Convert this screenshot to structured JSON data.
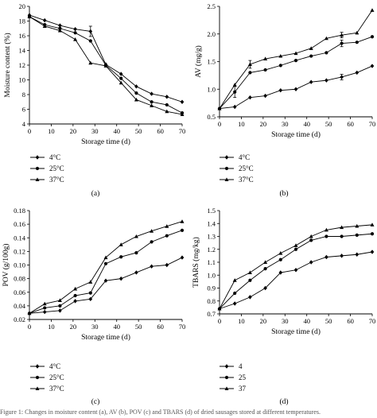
{
  "chart_data": [
    {
      "type": "line",
      "panel_label": "(a)",
      "xlabel": "Storage time (d)",
      "ylabel": "Moisture content (%)",
      "xlim": [
        0,
        70
      ],
      "ylim": [
        4,
        20
      ],
      "xticks": [
        0,
        10,
        20,
        30,
        40,
        50,
        60,
        70
      ],
      "yticks": [
        4,
        6,
        8,
        10,
        12,
        14,
        16,
        18,
        20
      ],
      "x": [
        0,
        7,
        14,
        21,
        28,
        35,
        42,
        49,
        56,
        63,
        70
      ],
      "series": [
        {
          "name": "4°C",
          "marker": "diamond",
          "values": [
            18.8,
            18.1,
            17.4,
            16.9,
            16.6,
            12.1,
            10.8,
            9.1,
            8.1,
            7.7,
            7.0
          ]
        },
        {
          "name": "25°C",
          "marker": "circle",
          "values": [
            18.6,
            17.5,
            17.0,
            16.4,
            15.3,
            12.0,
            10.2,
            8.2,
            7.0,
            6.6,
            5.5
          ]
        },
        {
          "name": "37°C",
          "marker": "triangle",
          "values": [
            18.6,
            17.3,
            16.7,
            15.5,
            12.3,
            11.9,
            9.6,
            7.3,
            6.5,
            5.7,
            5.3
          ]
        }
      ],
      "error_bars": [
        {
          "series": 0,
          "index": 4,
          "err": 0.7
        }
      ],
      "legend_position": "below",
      "grid": false
    },
    {
      "type": "line",
      "panel_label": "(b)",
      "xlabel": "Storage time (d)",
      "ylabel": "AV (mg/g)",
      "xlim": [
        0,
        70
      ],
      "ylim": [
        0.5,
        2.5
      ],
      "xticks": [
        0,
        10,
        20,
        30,
        40,
        50,
        60,
        70
      ],
      "yticks": [
        0.5,
        1.0,
        1.5,
        2.0,
        2.5
      ],
      "ytick_labels": [
        "0.5",
        "1.0",
        "1.5",
        "2.0",
        "2.5"
      ],
      "x": [
        0,
        7,
        14,
        21,
        28,
        35,
        42,
        49,
        56,
        63,
        70
      ],
      "series": [
        {
          "name": "4°C",
          "marker": "diamond",
          "values": [
            0.65,
            0.68,
            0.85,
            0.88,
            0.98,
            1.0,
            1.13,
            1.16,
            1.22,
            1.3,
            1.42
          ]
        },
        {
          "name": "25°C",
          "marker": "circle",
          "values": [
            0.65,
            0.95,
            1.3,
            1.35,
            1.43,
            1.52,
            1.6,
            1.66,
            1.83,
            1.85,
            1.95
          ]
        },
        {
          "name": "37°C",
          "marker": "triangle",
          "values": [
            0.65,
            1.08,
            1.45,
            1.55,
            1.6,
            1.65,
            1.74,
            1.92,
            1.98,
            2.02,
            2.43
          ]
        }
      ],
      "error_bars": [
        {
          "series": 1,
          "index": 1,
          "err": 0.1
        },
        {
          "series": 2,
          "index": 2,
          "err": 0.07
        },
        {
          "series": 1,
          "index": 8,
          "err": 0.06
        },
        {
          "series": 0,
          "index": 8,
          "err": 0.05
        },
        {
          "series": 2,
          "index": 8,
          "err": 0.05
        }
      ],
      "legend_position": "below",
      "grid": false
    },
    {
      "type": "line",
      "panel_label": "(c)",
      "xlabel": "Storage time (d)",
      "ylabel": "POV (g/100g)",
      "xlim": [
        0,
        70
      ],
      "ylim": [
        0.02,
        0.18
      ],
      "xticks": [
        0,
        10,
        20,
        30,
        40,
        50,
        60,
        70
      ],
      "yticks": [
        0.02,
        0.04,
        0.06,
        0.08,
        0.1,
        0.12,
        0.14,
        0.16,
        0.18
      ],
      "ytick_labels": [
        "0.02",
        "0.04",
        "0.06",
        "0.08",
        "0.10",
        "0.12",
        "0.14",
        "0.16",
        "0.18"
      ],
      "x": [
        0,
        7,
        14,
        21,
        28,
        35,
        42,
        49,
        56,
        63,
        70
      ],
      "series": [
        {
          "name": "4°C",
          "marker": "diamond",
          "values": [
            0.029,
            0.031,
            0.033,
            0.047,
            0.05,
            0.077,
            0.08,
            0.089,
            0.098,
            0.1,
            0.111
          ]
        },
        {
          "name": "25°C",
          "marker": "circle",
          "values": [
            0.029,
            0.037,
            0.04,
            0.055,
            0.059,
            0.102,
            0.112,
            0.118,
            0.134,
            0.143,
            0.151
          ]
        },
        {
          "name": "37°C",
          "marker": "triangle",
          "values": [
            0.029,
            0.043,
            0.048,
            0.065,
            0.075,
            0.111,
            0.13,
            0.142,
            0.15,
            0.157,
            0.164
          ]
        }
      ],
      "legend_position": "below",
      "grid": false
    },
    {
      "type": "line",
      "panel_label": "(d)",
      "xlabel": "Storage time (d)",
      "ylabel": "TBARS (mg/kg)",
      "xlim": [
        0,
        70
      ],
      "ylim": [
        0.7,
        1.5
      ],
      "xticks": [
        0,
        10,
        20,
        30,
        40,
        50,
        60,
        70
      ],
      "yticks": [
        0.7,
        0.8,
        0.9,
        1.0,
        1.1,
        1.2,
        1.3,
        1.4,
        1.5
      ],
      "ytick_labels": [
        "0.7",
        "0.8",
        "0.9",
        "1.0",
        "1.1",
        "1.2",
        "1.3",
        "1.4",
        "1.5"
      ],
      "x": [
        0,
        7,
        14,
        21,
        28,
        35,
        42,
        49,
        56,
        63,
        70
      ],
      "series": [
        {
          "name": "4",
          "marker": "diamond",
          "values": [
            0.74,
            0.78,
            0.83,
            0.9,
            1.02,
            1.04,
            1.1,
            1.14,
            1.15,
            1.16,
            1.18
          ]
        },
        {
          "name": "25",
          "marker": "circle",
          "values": [
            0.74,
            0.86,
            0.96,
            1.05,
            1.12,
            1.2,
            1.27,
            1.3,
            1.3,
            1.31,
            1.32
          ]
        },
        {
          "name": "37",
          "marker": "triangle",
          "values": [
            0.74,
            0.96,
            1.02,
            1.1,
            1.17,
            1.23,
            1.3,
            1.35,
            1.37,
            1.38,
            1.39
          ]
        }
      ],
      "legend_position": "below",
      "grid": false
    }
  ],
  "caption": "Figure 1: Changes in moisture content (a), AV (b), POV (c) and TBARS (d) of dried sausages stored at different temperatures."
}
